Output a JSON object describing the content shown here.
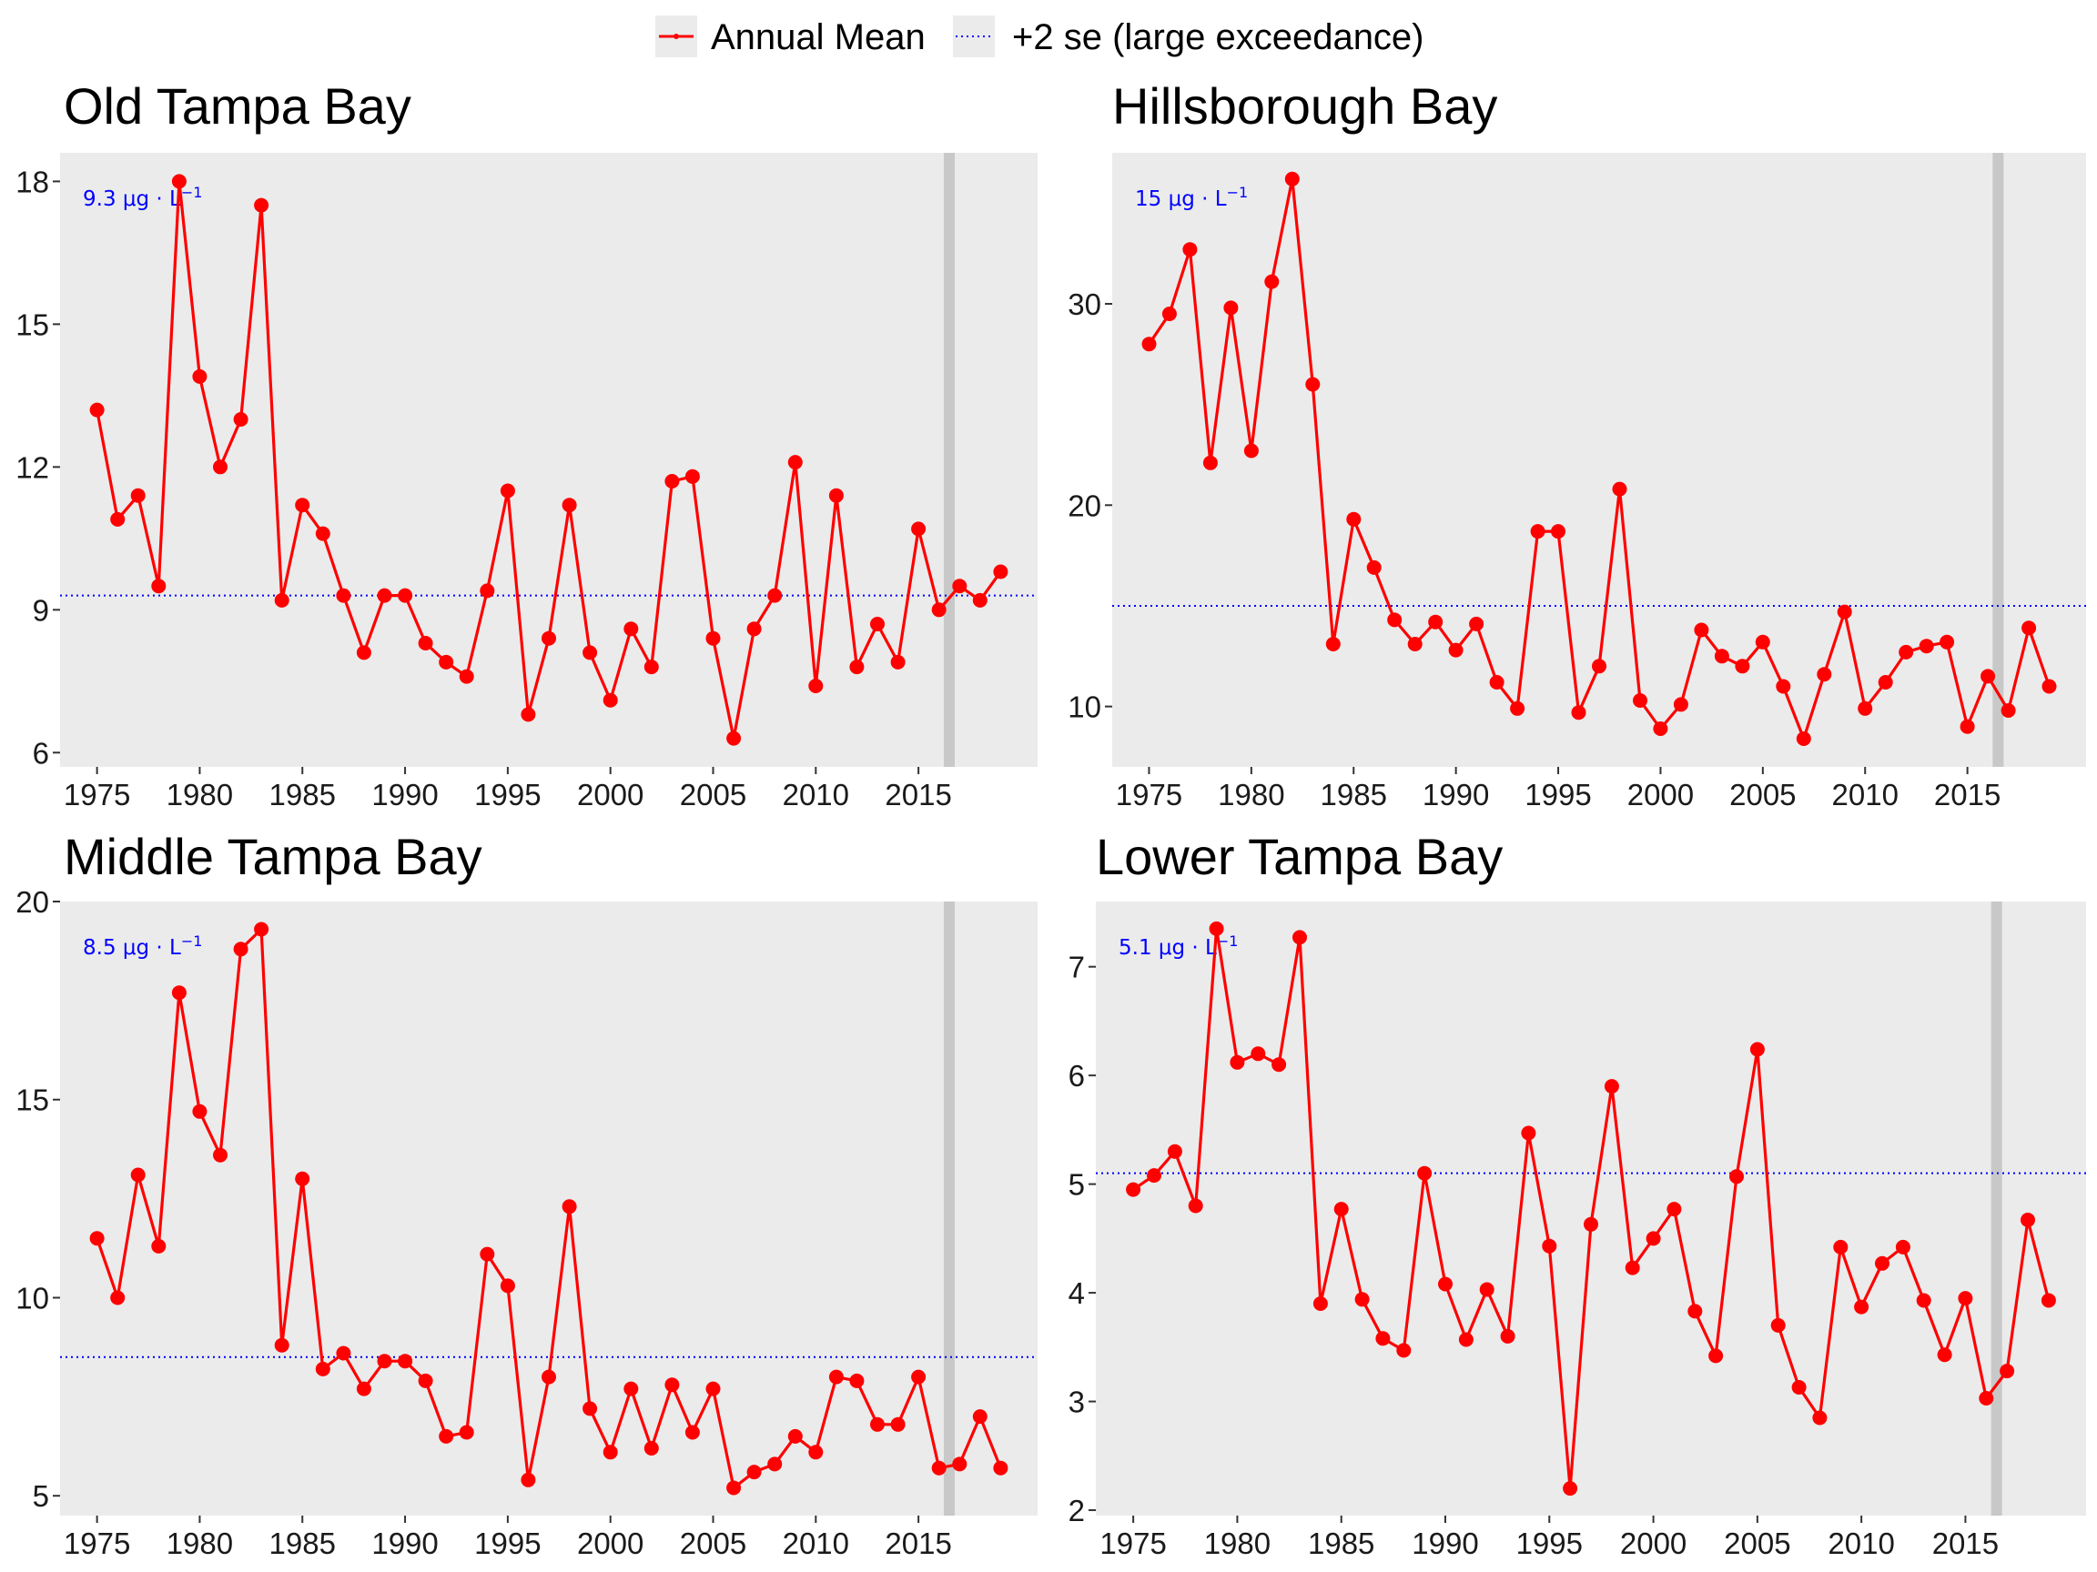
{
  "legend": {
    "items": [
      {
        "label": "Annual Mean",
        "color": "#ff0000",
        "style": "solid-line-with-point"
      },
      {
        "label": "+2 se (large exceedance)",
        "color": "#0000ff",
        "style": "dotted-line"
      }
    ]
  },
  "chart_data": [
    {
      "type": "line",
      "title": "Old Tampa Bay",
      "xlabel": "",
      "ylabel": "",
      "xlim": [
        1973.2,
        2020.8
      ],
      "ylim": [
        5.7,
        18.6
      ],
      "xticks": [
        1975,
        1980,
        1985,
        1990,
        1995,
        2000,
        2005,
        2010,
        2015
      ],
      "yticks": [
        6,
        9,
        12,
        15,
        18
      ],
      "threshold": {
        "value": 9.3,
        "label": "9.3 μg · L",
        "label_sup": "−1",
        "color": "#0000ff",
        "line_style": "dotted"
      },
      "vline": {
        "x": 2016.5,
        "color": "#c8c8c8"
      },
      "series": [
        {
          "name": "Annual Mean",
          "color": "#ff0000",
          "x": [
            1975,
            1976,
            1977,
            1978,
            1979,
            1980,
            1981,
            1982,
            1983,
            1984,
            1985,
            1986,
            1987,
            1988,
            1989,
            1990,
            1991,
            1992,
            1993,
            1994,
            1995,
            1996,
            1997,
            1998,
            1999,
            2000,
            2001,
            2002,
            2003,
            2004,
            2005,
            2006,
            2007,
            2008,
            2009,
            2010,
            2011,
            2012,
            2013,
            2014,
            2015,
            2016,
            2017,
            2018,
            2019
          ],
          "y": [
            13.2,
            10.9,
            11.4,
            9.5,
            18.0,
            13.9,
            12.0,
            13.0,
            17.5,
            9.2,
            11.2,
            10.6,
            9.3,
            8.1,
            9.3,
            9.3,
            8.3,
            7.9,
            7.6,
            9.4,
            11.5,
            6.8,
            8.4,
            11.2,
            8.1,
            7.1,
            8.6,
            7.8,
            11.7,
            11.8,
            8.4,
            6.3,
            8.6,
            9.3,
            12.1,
            7.4,
            11.4,
            7.8,
            8.7,
            7.9,
            10.7,
            9.0,
            9.5,
            9.2,
            9.8
          ]
        }
      ]
    },
    {
      "type": "line",
      "title": "Hillsborough Bay",
      "xlabel": "",
      "ylabel": "",
      "xlim": [
        1973.2,
        2020.8
      ],
      "ylim": [
        7.0,
        37.5
      ],
      "xticks": [
        1975,
        1980,
        1985,
        1990,
        1995,
        2000,
        2005,
        2010,
        2015
      ],
      "yticks": [
        10,
        20,
        30
      ],
      "threshold": {
        "value": 15.0,
        "label": "15 μg · L",
        "label_sup": "−1",
        "color": "#0000ff",
        "line_style": "dotted"
      },
      "vline": {
        "x": 2016.5,
        "color": "#c8c8c8"
      },
      "series": [
        {
          "name": "Annual Mean",
          "color": "#ff0000",
          "x": [
            1975,
            1976,
            1977,
            1978,
            1979,
            1980,
            1981,
            1982,
            1983,
            1984,
            1985,
            1986,
            1987,
            1988,
            1989,
            1990,
            1991,
            1992,
            1993,
            1994,
            1995,
            1996,
            1997,
            1998,
            1999,
            2000,
            2001,
            2002,
            2003,
            2004,
            2005,
            2006,
            2007,
            2008,
            2009,
            2010,
            2011,
            2012,
            2013,
            2014,
            2015,
            2016,
            2017,
            2018,
            2019
          ],
          "y": [
            28.0,
            29.5,
            32.7,
            22.1,
            29.8,
            22.7,
            31.1,
            36.2,
            26.0,
            13.1,
            19.3,
            16.9,
            14.3,
            13.1,
            14.2,
            12.8,
            14.1,
            11.2,
            9.9,
            18.7,
            18.7,
            9.7,
            12.0,
            20.8,
            10.3,
            8.9,
            10.1,
            13.8,
            12.5,
            12.0,
            13.2,
            11.0,
            8.4,
            11.6,
            14.7,
            9.9,
            11.2,
            12.7,
            13.0,
            13.2,
            9.0,
            11.5,
            9.8,
            13.9,
            11.0
          ]
        }
      ]
    },
    {
      "type": "line",
      "title": "Middle Tampa Bay",
      "xlabel": "",
      "ylabel": "",
      "xlim": [
        1973.2,
        2020.8
      ],
      "ylim": [
        4.5,
        20.0
      ],
      "xticks": [
        1975,
        1980,
        1985,
        1990,
        1995,
        2000,
        2005,
        2010,
        2015
      ],
      "yticks": [
        5,
        10,
        15,
        20
      ],
      "threshold": {
        "value": 8.5,
        "label": "8.5 μg · L",
        "label_sup": "−1",
        "color": "#0000ff",
        "line_style": "dotted"
      },
      "vline": {
        "x": 2016.5,
        "color": "#c8c8c8"
      },
      "series": [
        {
          "name": "Annual Mean",
          "color": "#ff0000",
          "x": [
            1975,
            1976,
            1977,
            1978,
            1979,
            1980,
            1981,
            1982,
            1983,
            1984,
            1985,
            1986,
            1987,
            1988,
            1989,
            1990,
            1991,
            1992,
            1993,
            1994,
            1995,
            1996,
            1997,
            1998,
            1999,
            2000,
            2001,
            2002,
            2003,
            2004,
            2005,
            2006,
            2007,
            2008,
            2009,
            2010,
            2011,
            2012,
            2013,
            2014,
            2015,
            2016,
            2017,
            2018,
            2019
          ],
          "y": [
            11.5,
            10.0,
            13.1,
            11.3,
            17.7,
            14.7,
            13.6,
            18.8,
            19.3,
            8.8,
            13.0,
            8.2,
            8.6,
            7.7,
            8.4,
            8.4,
            7.9,
            6.5,
            6.6,
            11.1,
            10.3,
            5.4,
            8.0,
            12.3,
            7.2,
            6.1,
            7.7,
            6.2,
            7.8,
            6.6,
            7.7,
            5.2,
            5.6,
            5.8,
            6.5,
            6.1,
            8.0,
            7.9,
            6.8,
            6.8,
            8.0,
            5.7,
            5.8,
            7.0,
            5.7
          ]
        }
      ]
    },
    {
      "type": "line",
      "title": "Lower Tampa Bay",
      "xlabel": "",
      "ylabel": "",
      "xlim": [
        1973.2,
        2020.8
      ],
      "ylim": [
        1.95,
        7.6
      ],
      "xticks": [
        1975,
        1980,
        1985,
        1990,
        1995,
        2000,
        2005,
        2010,
        2015
      ],
      "yticks": [
        2,
        3,
        4,
        5,
        6,
        7
      ],
      "threshold": {
        "value": 5.1,
        "label": "5.1 μg · L",
        "label_sup": "−1",
        "color": "#0000ff",
        "line_style": "dotted"
      },
      "vline": {
        "x": 2016.5,
        "color": "#c8c8c8"
      },
      "series": [
        {
          "name": "Annual Mean",
          "color": "#ff0000",
          "x": [
            1975,
            1976,
            1977,
            1978,
            1979,
            1980,
            1981,
            1982,
            1983,
            1984,
            1985,
            1986,
            1987,
            1988,
            1989,
            1990,
            1991,
            1992,
            1993,
            1994,
            1995,
            1996,
            1997,
            1998,
            1999,
            2000,
            2001,
            2002,
            2003,
            2004,
            2005,
            2006,
            2007,
            2008,
            2009,
            2010,
            2011,
            2012,
            2013,
            2014,
            2015,
            2016,
            2017,
            2018,
            2019
          ],
          "y": [
            4.95,
            5.08,
            5.3,
            4.8,
            7.35,
            6.12,
            6.2,
            6.1,
            7.27,
            3.9,
            4.77,
            3.94,
            3.58,
            3.47,
            5.1,
            4.08,
            3.57,
            4.03,
            3.6,
            5.47,
            4.43,
            2.2,
            4.63,
            5.9,
            4.23,
            4.5,
            4.77,
            3.83,
            3.42,
            5.07,
            6.24,
            3.7,
            3.13,
            2.85,
            4.42,
            3.87,
            4.27,
            4.42,
            3.93,
            3.43,
            3.95,
            3.03,
            3.28,
            4.67,
            3.93
          ]
        }
      ]
    }
  ]
}
